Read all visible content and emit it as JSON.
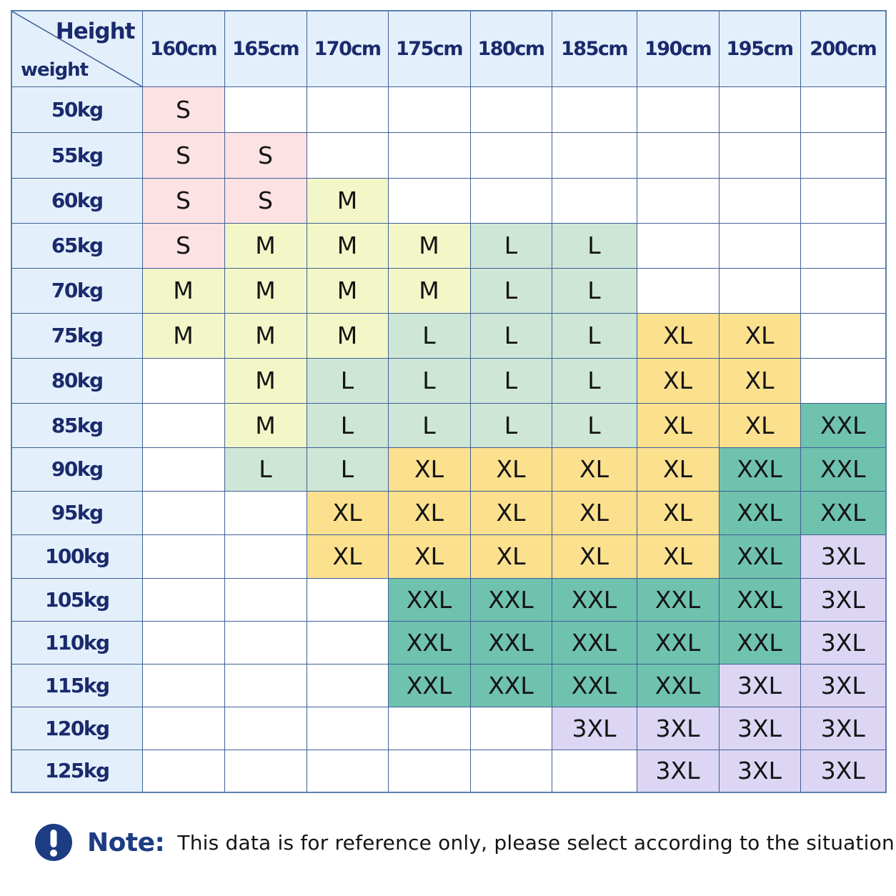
{
  "corner": {
    "height_label": "Height",
    "weight_label": "weight"
  },
  "heights": [
    "160cm",
    "165cm",
    "170cm",
    "175cm",
    "180cm",
    "185cm",
    "190cm",
    "195cm",
    "200cm"
  ],
  "rows": [
    {
      "weight": "50kg",
      "sizes": [
        "S",
        "",
        "",
        "",
        "",
        "",
        "",
        "",
        ""
      ]
    },
    {
      "weight": "55kg",
      "sizes": [
        "S",
        "S",
        "",
        "",
        "",
        "",
        "",
        "",
        ""
      ]
    },
    {
      "weight": "60kg",
      "sizes": [
        "S",
        "S",
        "M",
        "",
        "",
        "",
        "",
        "",
        ""
      ]
    },
    {
      "weight": "65kg",
      "sizes": [
        "S",
        "M",
        "M",
        "M",
        "L",
        "L",
        "",
        "",
        ""
      ]
    },
    {
      "weight": "70kg",
      "sizes": [
        "M",
        "M",
        "M",
        "M",
        "L",
        "L",
        "",
        "",
        ""
      ]
    },
    {
      "weight": "75kg",
      "sizes": [
        "M",
        "M",
        "M",
        "L",
        "L",
        "L",
        "XL",
        "XL",
        ""
      ]
    },
    {
      "weight": "80kg",
      "sizes": [
        "",
        "M",
        "L",
        "L",
        "L",
        "L",
        "XL",
        "XL",
        ""
      ]
    },
    {
      "weight": "85kg",
      "sizes": [
        "",
        "M",
        "L",
        "L",
        "L",
        "L",
        "XL",
        "XL",
        "XXL"
      ]
    },
    {
      "weight": "90kg",
      "sizes": [
        "",
        "L",
        "L",
        "XL",
        "XL",
        "XL",
        "XL",
        "XXL",
        "XXL"
      ]
    },
    {
      "weight": "95kg",
      "sizes": [
        "",
        "",
        "XL",
        "XL",
        "XL",
        "XL",
        "XL",
        "XXL",
        "XXL"
      ]
    },
    {
      "weight": "100kg",
      "sizes": [
        "",
        "",
        "XL",
        "XL",
        "XL",
        "XL",
        "XL",
        "XXL",
        "3XL"
      ]
    },
    {
      "weight": "105kg",
      "sizes": [
        "",
        "",
        "",
        "XXL",
        "XXL",
        "XXL",
        "XXL",
        "XXL",
        "3XL"
      ]
    },
    {
      "weight": "110kg",
      "sizes": [
        "",
        "",
        "",
        "XXL",
        "XXL",
        "XXL",
        "XXL",
        "XXL",
        "3XL"
      ]
    },
    {
      "weight": "115kg",
      "sizes": [
        "",
        "",
        "",
        "XXL",
        "XXL",
        "XXL",
        "XXL",
        "3XL",
        "3XL"
      ]
    },
    {
      "weight": "120kg",
      "sizes": [
        "",
        "",
        "",
        "",
        "",
        "3XL",
        "3XL",
        "3XL",
        "3XL"
      ]
    },
    {
      "weight": "125kg",
      "sizes": [
        "",
        "",
        "",
        "",
        "",
        "",
        "3XL",
        "3XL",
        "3XL"
      ]
    }
  ],
  "size_colors": {
    "S": "#fde2e4",
    "M": "#f3f7c8",
    "L": "#cde6d6",
    "XL": "#fbe08e",
    "XXL": "#6fc2ae",
    "3XL": "#dcd6f4"
  },
  "header_bg": "#e3f0fb",
  "note": {
    "icon": "exclamation-circle-icon",
    "label": "Note:",
    "text": "This data is for reference only, please select according to the situation"
  }
}
